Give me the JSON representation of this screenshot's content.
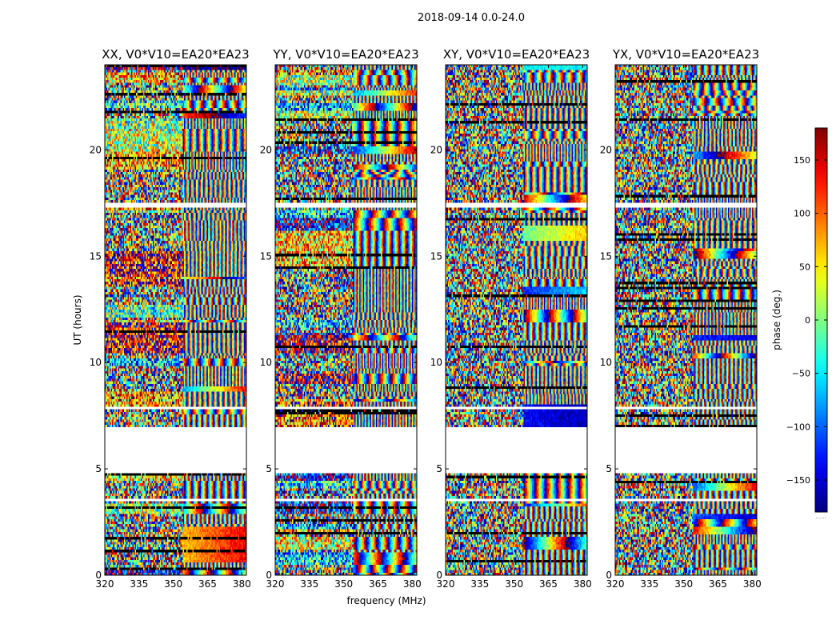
{
  "chart_data": {
    "type": "heatmap",
    "title": "2018-09-14 0.0-24.0",
    "colormap": "jet",
    "xlabel": "frequency (MHz)",
    "ylabel": "UT (hours)",
    "xlim": [
      320,
      382
    ],
    "ylim": [
      0,
      24
    ],
    "x_ticks": [
      320,
      335,
      350,
      365,
      380
    ],
    "y_ticks": [
      0,
      5,
      10,
      15,
      20
    ],
    "panels": [
      {
        "name": "XX, V0*V10=EA20*EA23",
        "style": "xx"
      },
      {
        "name": "YY, V0*V10=EA20*EA23",
        "style": "yy"
      },
      {
        "name": "XY, V0*V10=EA20*EA23",
        "style": "cross"
      },
      {
        "name": "YX, V0*V10=EA20*EA23",
        "style": "cross"
      }
    ],
    "data_gaps_hours": [
      [
        4.85,
        6.95
      ],
      [
        7.75,
        7.9
      ],
      [
        17.3,
        17.55
      ],
      [
        3.45,
        3.55
      ]
    ],
    "colorbar": {
      "label": "phase (deg.)",
      "range": [
        -180,
        180
      ],
      "ticks": [
        -150,
        -100,
        -50,
        0,
        50,
        100,
        150
      ],
      "tick_labels": [
        "−150",
        "−100",
        "−50",
        "0",
        "50",
        "100",
        "150"
      ]
    },
    "colorbar_extra_text": "......"
  }
}
